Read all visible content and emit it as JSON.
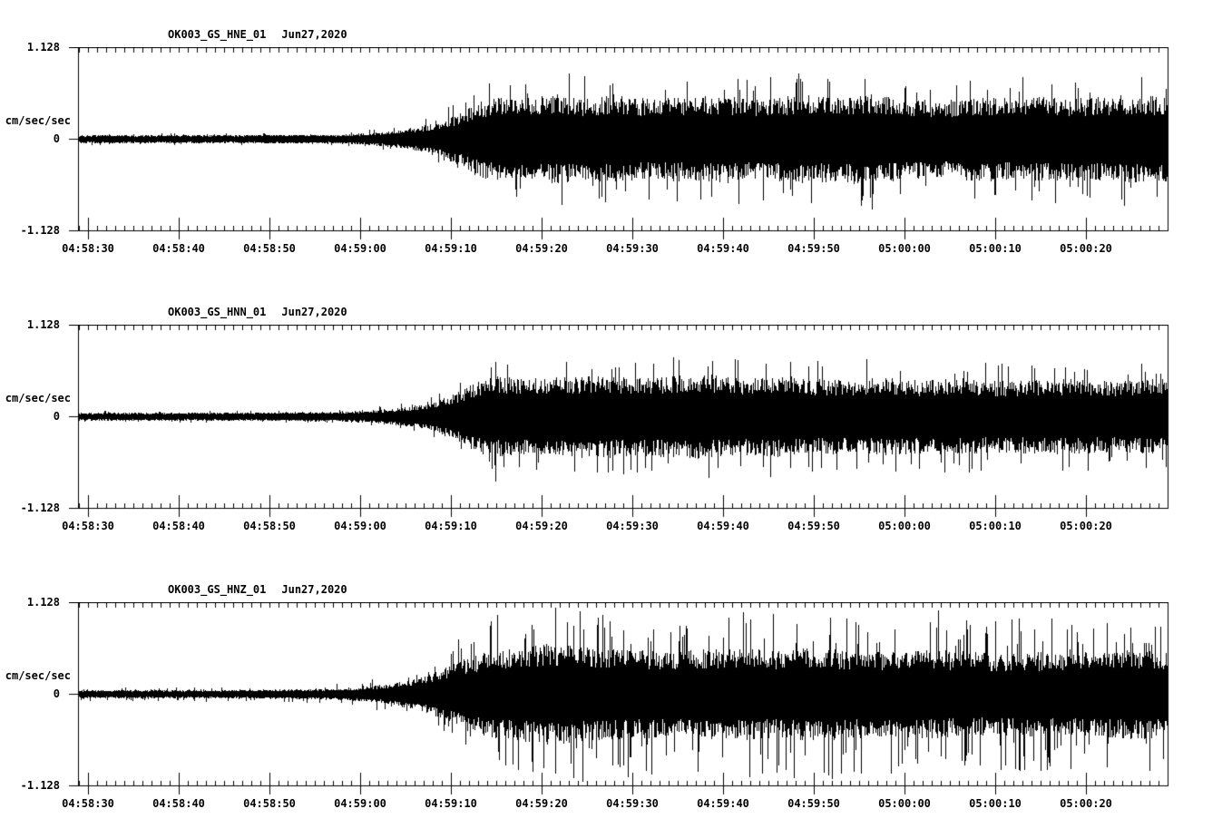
{
  "page": {
    "background_color": "#ffffff",
    "ink_color": "#000000"
  },
  "chart_data": [
    {
      "type": "line",
      "subtype": "seismogram",
      "title": "OK003_GS_HNE_01",
      "date_label": "Jun27,2020",
      "ylabel": "cm/sec/sec",
      "y_ticks": [
        "1.128",
        "0",
        "-1.128"
      ],
      "ylim": [
        -1.128,
        1.128
      ],
      "x_tick_labels": [
        "04:58:30",
        "04:58:40",
        "04:58:50",
        "04:59:00",
        "04:59:10",
        "04:59:20",
        "04:59:30",
        "04:59:40",
        "04:59:50",
        "05:00:00",
        "05:00:10",
        "05:00:20"
      ],
      "x_major_interval_s": 10,
      "x_minor_interval_s": 1,
      "t_range_s": [
        -1.1,
        119.0
      ],
      "grid": false,
      "legend": "none",
      "seed": 7,
      "noise_floor": 0.045,
      "spike_probability": 0.055,
      "spike_gain": 1.55,
      "envelope": [
        [
          -1.1,
          0.045
        ],
        [
          10,
          0.045
        ],
        [
          20,
          0.05
        ],
        [
          28,
          0.05
        ],
        [
          31,
          0.07
        ],
        [
          34,
          0.1
        ],
        [
          37,
          0.16
        ],
        [
          39,
          0.22
        ],
        [
          41,
          0.32
        ],
        [
          43,
          0.46
        ],
        [
          45,
          0.52
        ],
        [
          48,
          0.5
        ],
        [
          52,
          0.55
        ],
        [
          55,
          0.5
        ],
        [
          58,
          0.55
        ],
        [
          62,
          0.5
        ],
        [
          66,
          0.52
        ],
        [
          70,
          0.54
        ],
        [
          74,
          0.48
        ],
        [
          78,
          0.55
        ],
        [
          82,
          0.52
        ],
        [
          86,
          0.56
        ],
        [
          90,
          0.5
        ],
        [
          94,
          0.47
        ],
        [
          98,
          0.52
        ],
        [
          102,
          0.5
        ],
        [
          106,
          0.52
        ],
        [
          110,
          0.5
        ],
        [
          114,
          0.54
        ],
        [
          119,
          0.53
        ]
      ],
      "notable_spikes": [
        [
          47.2,
          -0.72
        ],
        [
          78.1,
          0.74
        ],
        [
          86.5,
          -0.68
        ]
      ]
    },
    {
      "type": "line",
      "subtype": "seismogram",
      "title": "OK003_GS_HNN_01",
      "date_label": "Jun27,2020",
      "ylabel": "cm/sec/sec",
      "y_ticks": [
        "1.128",
        "0",
        "-1.128"
      ],
      "ylim": [
        -1.128,
        1.128
      ],
      "x_tick_labels": [
        "04:58:30",
        "04:58:40",
        "04:58:50",
        "04:59:00",
        "04:59:10",
        "04:59:20",
        "04:59:30",
        "04:59:40",
        "04:59:50",
        "05:00:00",
        "05:00:10",
        "05:00:20"
      ],
      "x_major_interval_s": 10,
      "x_minor_interval_s": 1,
      "t_range_s": [
        -1.1,
        119.0
      ],
      "grid": false,
      "legend": "none",
      "seed": 13,
      "noise_floor": 0.045,
      "spike_probability": 0.05,
      "spike_gain": 1.5,
      "envelope": [
        [
          -1.1,
          0.045
        ],
        [
          10,
          0.045
        ],
        [
          20,
          0.05
        ],
        [
          28,
          0.055
        ],
        [
          31,
          0.07
        ],
        [
          34,
          0.1
        ],
        [
          37,
          0.15
        ],
        [
          39,
          0.22
        ],
        [
          41,
          0.32
        ],
        [
          43,
          0.44
        ],
        [
          45,
          0.5
        ],
        [
          48,
          0.47
        ],
        [
          52,
          0.5
        ],
        [
          56,
          0.52
        ],
        [
          60,
          0.48
        ],
        [
          64,
          0.5
        ],
        [
          68,
          0.52
        ],
        [
          72,
          0.48
        ],
        [
          76,
          0.5
        ],
        [
          80,
          0.47
        ],
        [
          84,
          0.46
        ],
        [
          88,
          0.48
        ],
        [
          92,
          0.45
        ],
        [
          96,
          0.47
        ],
        [
          100,
          0.44
        ],
        [
          104,
          0.45
        ],
        [
          108,
          0.46
        ],
        [
          112,
          0.44
        ],
        [
          116,
          0.46
        ],
        [
          119,
          0.46
        ]
      ],
      "notable_spikes": [
        [
          44.9,
          -0.8
        ],
        [
          47.5,
          -0.62
        ],
        [
          71.3,
          0.7
        ]
      ]
    },
    {
      "type": "line",
      "subtype": "seismogram",
      "title": "OK003_GS_HNZ_01",
      "date_label": "Jun27,2020",
      "ylabel": "cm/sec/sec",
      "y_ticks": [
        "1.128",
        "0",
        "-1.128"
      ],
      "ylim": [
        -1.128,
        1.128
      ],
      "x_tick_labels": [
        "04:58:30",
        "04:58:40",
        "04:58:50",
        "04:59:00",
        "04:59:10",
        "04:59:20",
        "04:59:30",
        "04:59:40",
        "04:59:50",
        "05:00:00",
        "05:00:10",
        "05:00:20"
      ],
      "x_major_interval_s": 10,
      "x_minor_interval_s": 1,
      "t_range_s": [
        -1.1,
        119.0
      ],
      "grid": false,
      "legend": "none",
      "seed": 29,
      "noise_floor": 0.045,
      "spike_probability": 0.12,
      "spike_gain": 1.85,
      "envelope": [
        [
          -1.1,
          0.045
        ],
        [
          10,
          0.045
        ],
        [
          20,
          0.05
        ],
        [
          26,
          0.06
        ],
        [
          30,
          0.08
        ],
        [
          33,
          0.12
        ],
        [
          36,
          0.18
        ],
        [
          38,
          0.26
        ],
        [
          40,
          0.36
        ],
        [
          42,
          0.46
        ],
        [
          45,
          0.54
        ],
        [
          48,
          0.58
        ],
        [
          51,
          0.62
        ],
        [
          54,
          0.6
        ],
        [
          57,
          0.55
        ],
        [
          60,
          0.56
        ],
        [
          64,
          0.52
        ],
        [
          68,
          0.55
        ],
        [
          72,
          0.56
        ],
        [
          76,
          0.54
        ],
        [
          80,
          0.58
        ],
        [
          84,
          0.54
        ],
        [
          88,
          0.52
        ],
        [
          92,
          0.55
        ],
        [
          96,
          0.53
        ],
        [
          100,
          0.5
        ],
        [
          104,
          0.52
        ],
        [
          108,
          0.5
        ],
        [
          112,
          0.53
        ],
        [
          116,
          0.55
        ],
        [
          119,
          0.52
        ]
      ],
      "notable_spikes": [
        [
          50.2,
          -0.92
        ],
        [
          52.8,
          0.88
        ],
        [
          61.5,
          -0.95
        ],
        [
          82.0,
          -1.05
        ],
        [
          93.7,
          1.03
        ]
      ]
    }
  ]
}
